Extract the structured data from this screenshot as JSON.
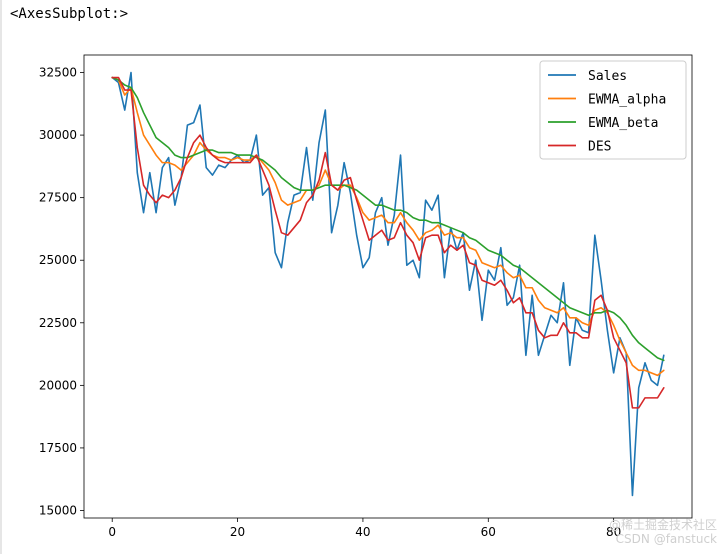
{
  "output_repr": "<AxesSubplot:>",
  "watermark": {
    "line1": "@稀土掘金技术社区",
    "line2": "CSDN @fanstuck"
  },
  "colors": {
    "Sales": "#1f77b4",
    "EWMA_alpha": "#ff7f0e",
    "EWMA_beta": "#2ca02c",
    "DES": "#d62728"
  },
  "chart_data": {
    "type": "line",
    "title": "",
    "xlabel": "",
    "ylabel": "",
    "xlim": [
      -4.5,
      92.5
    ],
    "ylim": [
      14700,
      33200
    ],
    "xticks": [
      0,
      20,
      40,
      60,
      80
    ],
    "yticks": [
      15000,
      17500,
      20000,
      22500,
      25000,
      27500,
      30000,
      32500
    ],
    "legend_position": "top-right",
    "grid": false,
    "x": [
      0,
      1,
      2,
      3,
      4,
      5,
      6,
      7,
      8,
      9,
      10,
      11,
      12,
      13,
      14,
      15,
      16,
      17,
      18,
      19,
      20,
      21,
      22,
      23,
      24,
      25,
      26,
      27,
      28,
      29,
      30,
      31,
      32,
      33,
      34,
      35,
      36,
      37,
      38,
      39,
      40,
      41,
      42,
      43,
      44,
      45,
      46,
      47,
      48,
      49,
      50,
      51,
      52,
      53,
      54,
      55,
      56,
      57,
      58,
      59,
      60,
      61,
      62,
      63,
      64,
      65,
      66,
      67,
      68,
      69,
      70,
      71,
      72,
      73,
      74,
      75,
      76,
      77,
      78,
      79,
      80,
      81,
      82,
      83,
      84,
      85,
      86,
      87,
      88
    ],
    "series": [
      {
        "name": "Sales",
        "values": [
          32300,
          32100,
          31000,
          32500,
          28500,
          26900,
          28500,
          26900,
          28700,
          29100,
          27200,
          28300,
          30400,
          30500,
          31200,
          28700,
          28400,
          28800,
          28700,
          29000,
          29200,
          28900,
          29000,
          30000,
          27600,
          27900,
          25300,
          24700,
          26500,
          27600,
          27700,
          29500,
          27400,
          29700,
          31000,
          26100,
          27200,
          28900,
          27700,
          26000,
          24700,
          25100,
          26900,
          27500,
          25600,
          26800,
          29200,
          24800,
          25000,
          24300,
          27400,
          27000,
          27600,
          24300,
          26300,
          25400,
          26100,
          23800,
          25000,
          22600,
          24600,
          24200,
          25500,
          23200,
          23500,
          24800,
          21200,
          23600,
          21200,
          22000,
          22800,
          22500,
          24100,
          20800,
          22700,
          22200,
          22100,
          26000,
          24200,
          22200,
          20500,
          21900,
          21300,
          15600,
          19900,
          20900,
          20200,
          20000,
          21200
        ]
      },
      {
        "name": "EWMA_alpha",
        "values": [
          32300,
          32200,
          31600,
          31900,
          30900,
          30000,
          29600,
          29200,
          28900,
          28900,
          28800,
          28600,
          28900,
          29200,
          29700,
          29400,
          29200,
          29100,
          29100,
          29000,
          29100,
          29000,
          29000,
          29200,
          28900,
          28600,
          28100,
          27400,
          27200,
          27300,
          27400,
          27800,
          27800,
          28000,
          28600,
          28000,
          27800,
          28000,
          28000,
          27500,
          26900,
          26600,
          26700,
          26800,
          26500,
          26500,
          26900,
          26500,
          26200,
          25800,
          26100,
          26200,
          26400,
          26000,
          26100,
          25900,
          25900,
          25500,
          25400,
          24900,
          24800,
          24700,
          24800,
          24500,
          24300,
          24400,
          23900,
          23900,
          23400,
          23100,
          23000,
          22900,
          23100,
          22700,
          22700,
          22500,
          22400,
          23000,
          23100,
          22900,
          22400,
          21800,
          21300,
          20800,
          20600,
          20600,
          20500,
          20400,
          20600
        ]
      },
      {
        "name": "EWMA_beta",
        "values": [
          32300,
          32200,
          32000,
          31900,
          31500,
          30900,
          30400,
          29900,
          29700,
          29500,
          29200,
          29100,
          29100,
          29200,
          29300,
          29400,
          29400,
          29300,
          29300,
          29300,
          29200,
          29200,
          29200,
          29100,
          29000,
          28800,
          28600,
          28300,
          28100,
          27900,
          27800,
          27800,
          27800,
          27900,
          28000,
          28000,
          28000,
          28000,
          27900,
          27800,
          27600,
          27400,
          27200,
          27200,
          27100,
          27000,
          27000,
          26900,
          26700,
          26600,
          26600,
          26500,
          26500,
          26400,
          26300,
          26200,
          26100,
          25900,
          25800,
          25600,
          25400,
          25300,
          25200,
          25000,
          24800,
          24700,
          24500,
          24300,
          24100,
          23900,
          23700,
          23500,
          23300,
          23100,
          23000,
          22900,
          22800,
          22900,
          22900,
          23000,
          22900,
          22700,
          22400,
          22000,
          21700,
          21500,
          21300,
          21100,
          21000
        ]
      },
      {
        "name": "DES",
        "values": [
          32300,
          32300,
          31800,
          31800,
          29500,
          28000,
          27600,
          27300,
          27600,
          27500,
          27800,
          28300,
          29100,
          29700,
          30000,
          29500,
          29200,
          29000,
          28900,
          28900,
          28900,
          28900,
          28900,
          29200,
          28600,
          28000,
          27000,
          26100,
          26000,
          26300,
          26600,
          27300,
          27600,
          28200,
          29300,
          28000,
          27800,
          28200,
          28300,
          27400,
          26600,
          25800,
          26000,
          26200,
          25800,
          25900,
          26500,
          26000,
          25700,
          25000,
          25900,
          26000,
          26000,
          25300,
          25600,
          25400,
          25600,
          24900,
          24800,
          24200,
          24100,
          24000,
          24200,
          23800,
          23300,
          23500,
          22900,
          22900,
          22200,
          21900,
          22000,
          22000,
          22500,
          22100,
          22100,
          21900,
          21900,
          23400,
          23600,
          23000,
          21900,
          21400,
          20900,
          19100,
          19100,
          19500,
          19500,
          19500,
          19900
        ]
      }
    ]
  }
}
